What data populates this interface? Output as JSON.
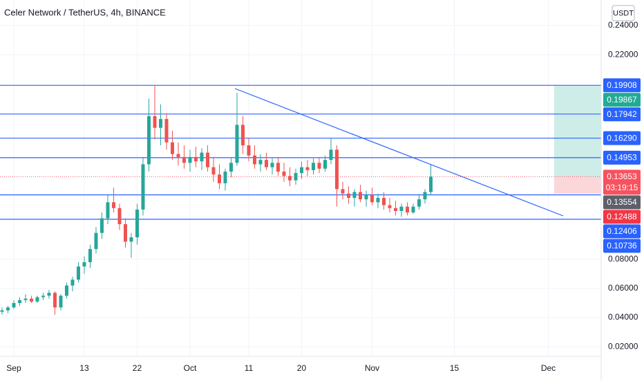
{
  "chart_data": {
    "type": "candlestick",
    "title": "Celer Network / TetherUS, 4h, BINANCE",
    "currency": "USDT",
    "up_color": "#26a69a",
    "down_color": "#ef5350",
    "grid": true,
    "xlim": [
      -2.35,
      100
    ],
    "xticks": [
      {
        "value": 0,
        "label": "Sep"
      },
      {
        "value": 12,
        "label": "13"
      },
      {
        "value": 21,
        "label": "22"
      },
      {
        "value": 30,
        "label": "Oct"
      },
      {
        "value": 40,
        "label": "11"
      },
      {
        "value": 49,
        "label": "20"
      },
      {
        "value": 61,
        "label": "Nov"
      },
      {
        "value": 75,
        "label": "15"
      },
      {
        "value": 91,
        "label": "Dec"
      }
    ],
    "ylim": [
      0.0135,
      0.2575
    ],
    "yticks": [
      {
        "value": 0.24,
        "label": "0.24000"
      },
      {
        "value": 0.22,
        "label": "0.22000"
      },
      {
        "value": 0.08,
        "label": "0.08000"
      },
      {
        "value": 0.06,
        "label": "0.06000"
      },
      {
        "value": 0.04,
        "label": "0.04000"
      },
      {
        "value": 0.02,
        "label": "0.02000"
      }
    ],
    "x": [
      -2,
      -1,
      0,
      1,
      2,
      3,
      4,
      5,
      6,
      7,
      8,
      9,
      10,
      11,
      12,
      13,
      14,
      15,
      16,
      17,
      18,
      19,
      20,
      21,
      22,
      23,
      24,
      25,
      26,
      27,
      28,
      29,
      30,
      31,
      32,
      33,
      34,
      35,
      36,
      37,
      38,
      39,
      40,
      41,
      42,
      43,
      44,
      45,
      46,
      47,
      48,
      49,
      50,
      51,
      52,
      53,
      54,
      55,
      56,
      57,
      58,
      59,
      60,
      61,
      62,
      63,
      64,
      65,
      66,
      67,
      68,
      69,
      70,
      71
    ],
    "open": [
      0.044,
      0.045,
      0.047,
      0.05,
      0.052,
      0.053,
      0.051,
      0.054,
      0.055,
      0.057,
      0.047,
      0.055,
      0.062,
      0.066,
      0.075,
      0.078,
      0.087,
      0.098,
      0.108,
      0.119,
      0.115,
      0.104,
      0.092,
      0.095,
      0.114,
      0.145,
      0.178,
      0.17,
      0.176,
      0.16,
      0.152,
      0.15,
      0.146,
      0.15,
      0.147,
      0.153,
      0.143,
      0.138,
      0.132,
      0.14,
      0.146,
      0.172,
      0.158,
      0.151,
      0.145,
      0.148,
      0.143,
      0.146,
      0.14,
      0.137,
      0.134,
      0.139,
      0.143,
      0.141,
      0.146,
      0.142,
      0.148,
      0.155,
      0.128,
      0.125,
      0.122,
      0.126,
      0.121,
      0.124,
      0.119,
      0.122,
      0.117,
      0.115,
      0.113,
      0.116,
      0.112,
      0.116,
      0.121,
      0.126
    ],
    "high": [
      0.047,
      0.048,
      0.052,
      0.054,
      0.056,
      0.055,
      0.055,
      0.057,
      0.059,
      0.058,
      0.056,
      0.064,
      0.068,
      0.078,
      0.082,
      0.09,
      0.102,
      0.112,
      0.124,
      0.129,
      0.118,
      0.108,
      0.098,
      0.118,
      0.15,
      0.19,
      0.199,
      0.186,
      0.18,
      0.168,
      0.16,
      0.158,
      0.155,
      0.157,
      0.156,
      0.158,
      0.15,
      0.145,
      0.142,
      0.15,
      0.194,
      0.178,
      0.163,
      0.158,
      0.152,
      0.153,
      0.149,
      0.15,
      0.146,
      0.143,
      0.142,
      0.147,
      0.148,
      0.149,
      0.15,
      0.151,
      0.163,
      0.158,
      0.133,
      0.13,
      0.128,
      0.131,
      0.127,
      0.129,
      0.125,
      0.126,
      0.122,
      0.12,
      0.118,
      0.119,
      0.118,
      0.124,
      0.128,
      0.145
    ],
    "low": [
      0.042,
      0.043,
      0.046,
      0.048,
      0.05,
      0.05,
      0.05,
      0.052,
      0.053,
      0.042,
      0.045,
      0.053,
      0.058,
      0.064,
      0.07,
      0.074,
      0.084,
      0.094,
      0.104,
      0.112,
      0.1,
      0.088,
      0.081,
      0.09,
      0.11,
      0.14,
      0.162,
      0.158,
      0.155,
      0.148,
      0.144,
      0.142,
      0.14,
      0.143,
      0.141,
      0.14,
      0.133,
      0.128,
      0.127,
      0.136,
      0.144,
      0.152,
      0.147,
      0.142,
      0.14,
      0.141,
      0.138,
      0.137,
      0.133,
      0.13,
      0.131,
      0.135,
      0.137,
      0.138,
      0.139,
      0.14,
      0.145,
      0.116,
      0.121,
      0.118,
      0.116,
      0.119,
      0.116,
      0.117,
      0.115,
      0.114,
      0.112,
      0.11,
      0.109,
      0.11,
      0.111,
      0.114,
      0.118,
      0.124
    ],
    "close": [
      0.045,
      0.047,
      0.05,
      0.052,
      0.053,
      0.051,
      0.054,
      0.055,
      0.057,
      0.047,
      0.055,
      0.062,
      0.066,
      0.075,
      0.078,
      0.087,
      0.098,
      0.108,
      0.119,
      0.115,
      0.104,
      0.092,
      0.095,
      0.114,
      0.145,
      0.178,
      0.17,
      0.176,
      0.16,
      0.152,
      0.15,
      0.146,
      0.15,
      0.147,
      0.153,
      0.143,
      0.138,
      0.132,
      0.14,
      0.146,
      0.172,
      0.158,
      0.151,
      0.145,
      0.148,
      0.143,
      0.146,
      0.14,
      0.137,
      0.134,
      0.139,
      0.143,
      0.141,
      0.146,
      0.142,
      0.148,
      0.155,
      0.128,
      0.125,
      0.122,
      0.126,
      0.121,
      0.124,
      0.119,
      0.122,
      0.117,
      0.115,
      0.113,
      0.116,
      0.112,
      0.116,
      0.121,
      0.126,
      0.13653
    ],
    "levels": {
      "color": "#2962ff",
      "values": [
        0.19908,
        0.17942,
        {
          "value": 0.1629,
          "label": "0.16290"
        },
        0.14953,
        0.12406,
        0.10736
      ]
    },
    "position": {
      "target": 0.19867,
      "stop": 0.12488,
      "target_color": "#22ab94",
      "stop_color": "#f23645"
    },
    "last_price": 0.13653,
    "last_color": "#f7525f",
    "countdown": "03:19:15",
    "marker_price": 0.13554,
    "marker_color": "#5d606b"
  }
}
